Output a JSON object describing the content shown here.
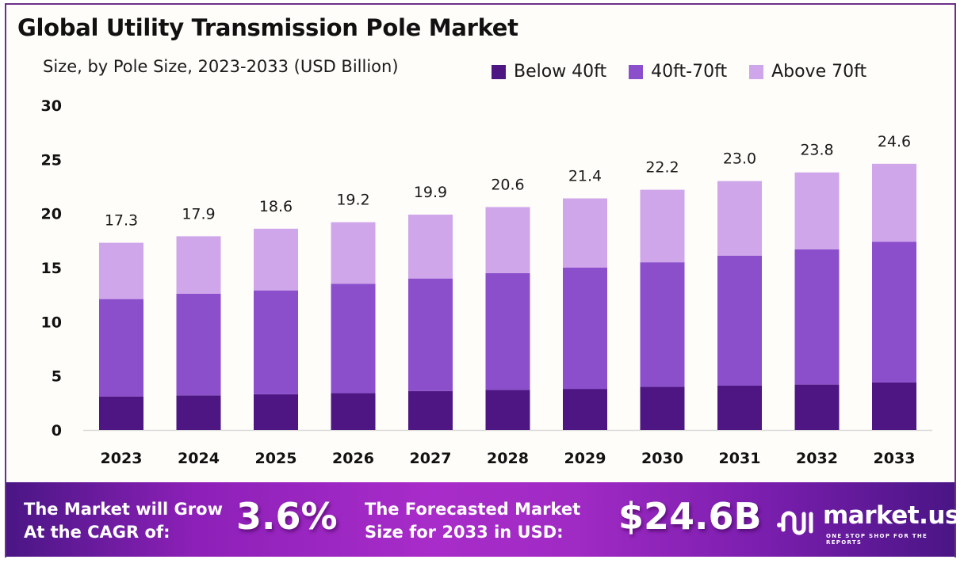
{
  "header": {
    "title": "Global Utility Transmission Pole Market",
    "subtitle": "Size, by Pole Size, 2023-2033 (USD Billion)"
  },
  "legend": [
    {
      "label": "Below 40ft",
      "color": "#4e1683"
    },
    {
      "label": "40ft-70ft",
      "color": "#8b4fcc"
    },
    {
      "label": "Above 70ft",
      "color": "#cfa6ea"
    }
  ],
  "chart_data": {
    "type": "bar",
    "stacked": true,
    "title": "Global Utility Transmission Pole Market",
    "subtitle": "Size, by Pole Size, 2023-2033 (USD Billion)",
    "xlabel": "",
    "ylabel": "",
    "ylim": [
      0,
      30
    ],
    "yticks": [
      0,
      5,
      10,
      15,
      20,
      25,
      30
    ],
    "grid": false,
    "legend_position": "top-right",
    "categories": [
      "2023",
      "2024",
      "2025",
      "2026",
      "2027",
      "2028",
      "2029",
      "2030",
      "2031",
      "2032",
      "2033"
    ],
    "series": [
      {
        "name": "Below 40ft",
        "color": "#4e1683",
        "values": [
          3.1,
          3.2,
          3.3,
          3.4,
          3.6,
          3.7,
          3.8,
          4.0,
          4.1,
          4.2,
          4.4
        ]
      },
      {
        "name": "40ft-70ft",
        "color": "#8b4fcc",
        "values": [
          9.0,
          9.4,
          9.6,
          10.1,
          10.4,
          10.8,
          11.2,
          11.5,
          12.0,
          12.5,
          13.0
        ]
      },
      {
        "name": "Above 70ft",
        "color": "#cfa6ea",
        "values": [
          5.2,
          5.3,
          5.7,
          5.7,
          5.9,
          6.1,
          6.4,
          6.7,
          6.9,
          7.1,
          7.2
        ]
      }
    ],
    "totals": [
      "17.3",
      "17.9",
      "18.6",
      "19.2",
      "19.9",
      "20.6",
      "21.4",
      "22.2",
      "23.0",
      "23.8",
      "24.6"
    ]
  },
  "banner": {
    "cagr_text_line1": "The Market will Grow",
    "cagr_text_line2": "At the CAGR of:",
    "cagr_value": "3.6%",
    "forecast_text_line1": "The Forecasted Market",
    "forecast_text_line2": "Size for 2033 in USD:",
    "forecast_value": "$24.6B",
    "logo_icon": "market-us-logo-icon",
    "logo_name": "market.us",
    "logo_tagline": "ONE STOP SHOP FOR THE REPORTS"
  }
}
